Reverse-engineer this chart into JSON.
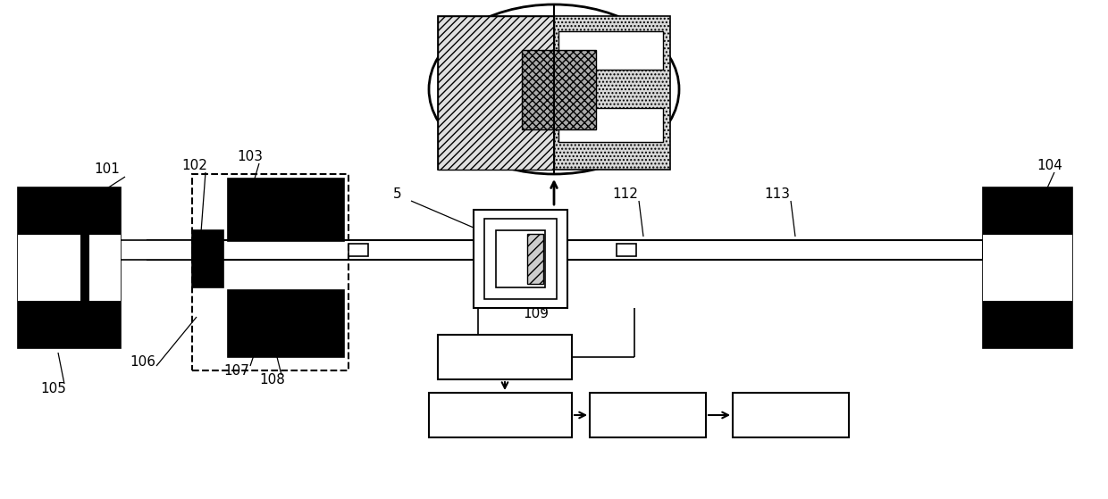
{
  "bg_color": "#ffffff",
  "lc": "#000000",
  "figsize": [
    12.4,
    5.59
  ],
  "dpi": 100
}
